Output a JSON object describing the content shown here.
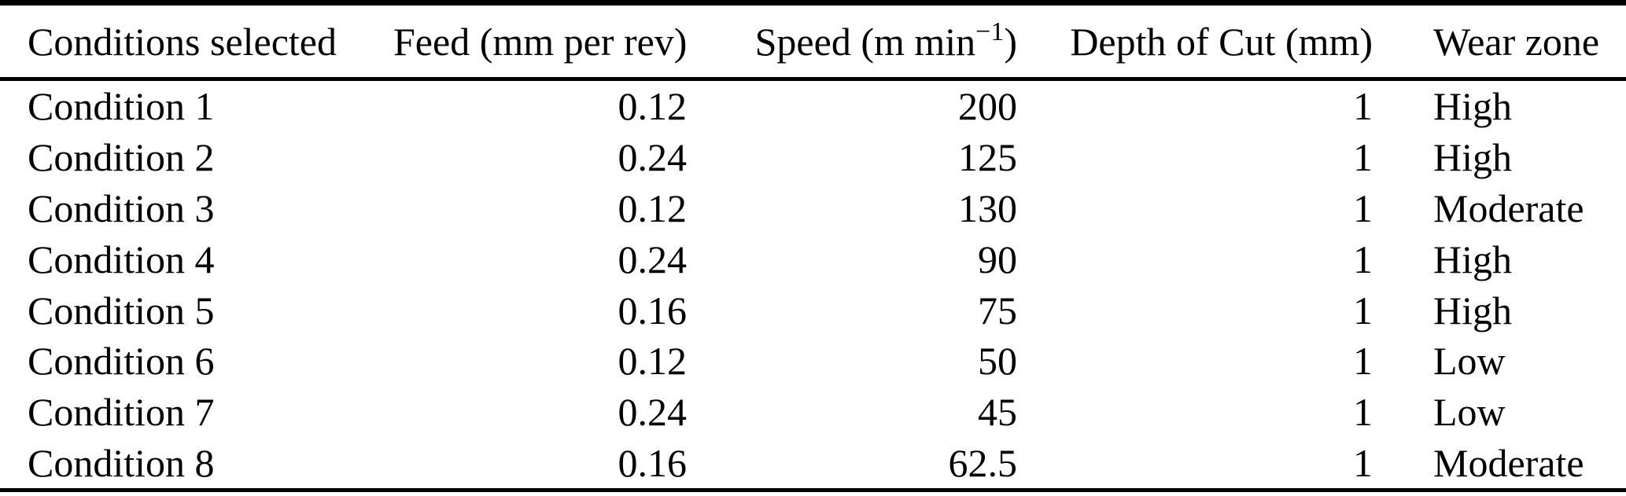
{
  "table": {
    "headers": {
      "conditions": "Conditions selected",
      "feed": "Feed (mm per rev)",
      "speed_prefix": "Speed (m min",
      "speed_superscript": "−1",
      "speed_suffix": ")",
      "depth": "Depth of Cut (mm)",
      "wear": "Wear zone"
    },
    "rows": [
      {
        "condition": "Condition 1",
        "feed": "0.12",
        "speed": "200",
        "depth_of_cut": "1",
        "wear_zone": "High"
      },
      {
        "condition": "Condition 2",
        "feed": "0.24",
        "speed": "125",
        "depth_of_cut": "1",
        "wear_zone": "High"
      },
      {
        "condition": "Condition 3",
        "feed": "0.12",
        "speed": "130",
        "depth_of_cut": "1",
        "wear_zone": "Moderate"
      },
      {
        "condition": "Condition 4",
        "feed": "0.24",
        "speed": "90",
        "depth_of_cut": "1",
        "wear_zone": "High"
      },
      {
        "condition": "Condition 5",
        "feed": "0.16",
        "speed": "75",
        "depth_of_cut": "1",
        "wear_zone": "High"
      },
      {
        "condition": "Condition 6",
        "feed": "0.12",
        "speed": "50",
        "depth_of_cut": "1",
        "wear_zone": "Low"
      },
      {
        "condition": "Condition 7",
        "feed": "0.24",
        "speed": "45",
        "depth_of_cut": "1",
        "wear_zone": "Low"
      },
      {
        "condition": "Condition 8",
        "feed": "0.16",
        "speed": "62.5",
        "depth_of_cut": "1",
        "wear_zone": "Moderate"
      }
    ]
  },
  "colors": {
    "text": "#000000",
    "background": "#ffffff",
    "rule": "#000000"
  }
}
